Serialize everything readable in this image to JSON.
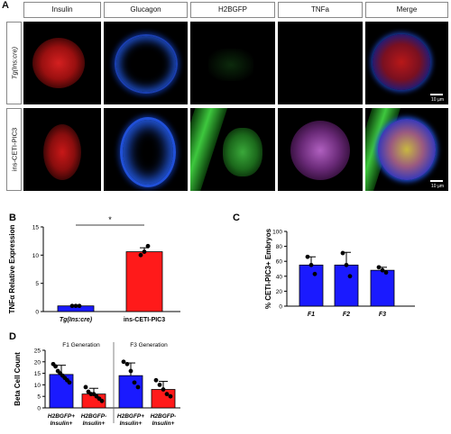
{
  "panel_a": {
    "letter": "A",
    "columns": [
      {
        "label": "Insulin",
        "color": "#e02020"
      },
      {
        "label": "Glucagon",
        "color": "#2a6fd6"
      },
      {
        "label": "H2BGFP",
        "color": "#3aa83a"
      },
      {
        "label": "TNFa",
        "color": "#a030b0"
      },
      {
        "label": "Merge",
        "color": "#222222"
      }
    ],
    "rows": [
      {
        "label": "Tg(Ins:cre)"
      },
      {
        "label": "ins-CETI-PIC3"
      }
    ],
    "scale_bar_label": "10 µm"
  },
  "chart_data": [
    {
      "panel": "B",
      "type": "bar",
      "ylabel": "TNFα Relative Expression",
      "categories": [
        "Tg(Ins:cre)",
        "ins-CETI-PIC3"
      ],
      "values": [
        1.0,
        10.6
      ],
      "errors": [
        0.1,
        0.7
      ],
      "points": [
        [
          1.0,
          1.0,
          1.0
        ],
        [
          10.0,
          10.6,
          11.6
        ]
      ],
      "colors": [
        "#1a1aff",
        "#ff1a1a"
      ],
      "ylim": [
        0,
        15
      ],
      "yticks": [
        "0",
        "5",
        "10",
        "15"
      ],
      "significance": "*"
    },
    {
      "panel": "C",
      "type": "bar",
      "ylabel": "% CETI-PIC3+ Embryos",
      "categories": [
        "F1",
        "F2",
        "F3"
      ],
      "values": [
        55,
        55,
        48
      ],
      "errors": [
        11,
        17,
        4
      ],
      "points": [
        [
          66,
          55,
          43
        ],
        [
          71,
          55,
          40
        ],
        [
          52,
          48,
          45
        ]
      ],
      "colors": [
        "#1a1aff",
        "#1a1aff",
        "#1a1aff"
      ],
      "ylim": [
        0,
        100
      ],
      "yticks": [
        "0",
        "20",
        "40",
        "60",
        "80",
        "100"
      ]
    },
    {
      "panel": "D",
      "type": "bar",
      "ylabel": "Beta Cell Count",
      "groups": [
        "F1 Generation",
        "F3 Generation"
      ],
      "categories": [
        [
          "H2BGFP+",
          "Insulin+"
        ],
        [
          "H2BGFP-",
          "Insulin+"
        ],
        [
          "H2BGFP+",
          "Insulin+"
        ],
        [
          "H2BGFP-",
          "Insulin+"
        ]
      ],
      "values": [
        14.5,
        6.0,
        14.0,
        8.0
      ],
      "errors": [
        4.0,
        2.5,
        5.5,
        3.5
      ],
      "points": [
        [
          19,
          18,
          16,
          15,
          14,
          13,
          12,
          11
        ],
        [
          9,
          7,
          6,
          6,
          5,
          4,
          3
        ],
        [
          20,
          19,
          16,
          11,
          9
        ],
        [
          12,
          10,
          8,
          6,
          5
        ]
      ],
      "colors": [
        "#1a1aff",
        "#ff1a1a",
        "#1a1aff",
        "#ff1a1a"
      ],
      "ylim": [
        0,
        25
      ],
      "yticks": [
        "0",
        "5",
        "10",
        "15",
        "20",
        "25"
      ]
    }
  ]
}
